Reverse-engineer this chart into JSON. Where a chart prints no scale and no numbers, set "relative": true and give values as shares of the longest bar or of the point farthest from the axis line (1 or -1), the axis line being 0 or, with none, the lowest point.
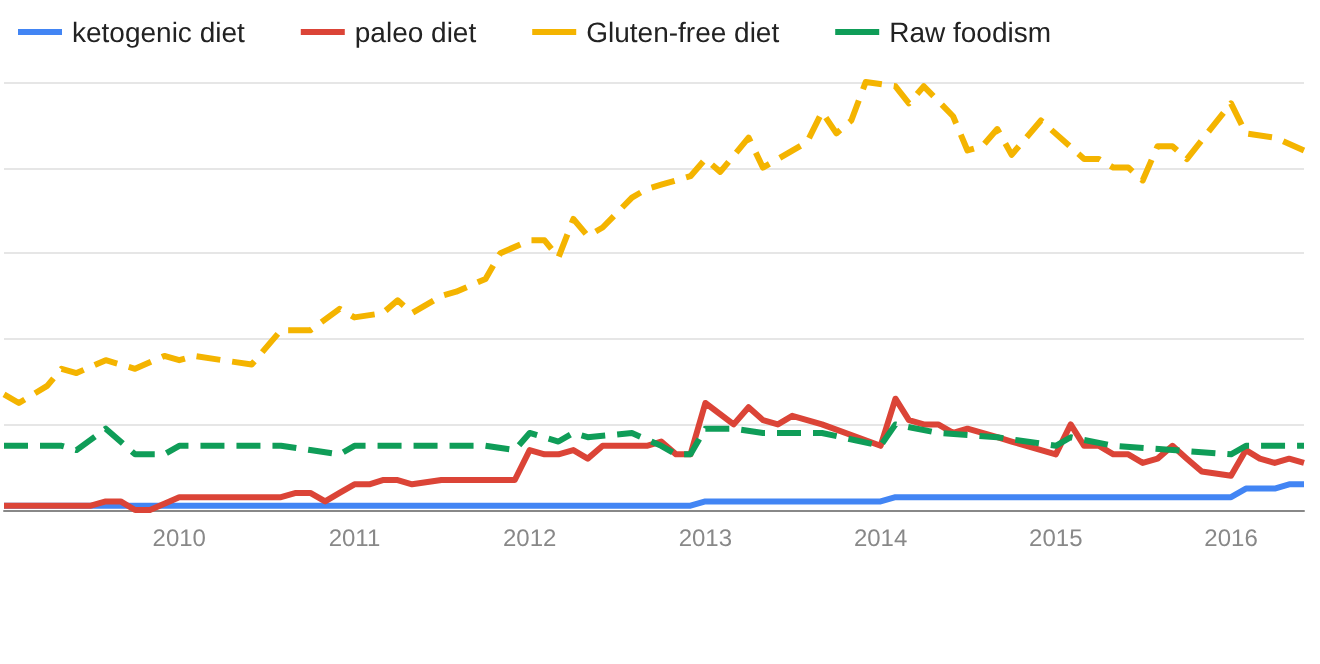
{
  "chart_data": {
    "type": "line",
    "relative": true,
    "grid": "y",
    "legend": "top left",
    "marker": "none",
    "xlim": [
      "2009-01",
      "2016-06"
    ],
    "xticks": [
      "2010",
      "2011",
      "2012",
      "2013",
      "2014",
      "2015",
      "2016"
    ],
    "series": [
      {
        "name": "ketogenic diet",
        "color": "#4285f4",
        "line_style": "solid",
        "x": [
          "2009-01",
          "2012-12",
          "2013-01",
          "2014-01",
          "2014-02",
          "2016-01",
          "2016-02",
          "2016-04",
          "2016-05",
          "2016-06"
        ],
        "values": [
          0.01,
          0.01,
          0.02,
          0.02,
          0.03,
          0.03,
          0.05,
          0.05,
          0.06,
          0.06
        ]
      },
      {
        "name": "paleo diet",
        "color": "#db4437",
        "line_style": "solid",
        "x": [
          "2009-01",
          "2009-07",
          "2009-08",
          "2009-09",
          "2009-10",
          "2009-11",
          "2010-01",
          "2010-08",
          "2010-09",
          "2010-10",
          "2010-11",
          "2010-12",
          "2011-01",
          "2011-02",
          "2011-03",
          "2011-04",
          "2011-05",
          "2011-07",
          "2011-12",
          "2012-01",
          "2012-02",
          "2012-03",
          "2012-04",
          "2012-05",
          "2012-06",
          "2012-08",
          "2012-09",
          "2012-10",
          "2012-11",
          "2012-12",
          "2013-01",
          "2013-03",
          "2013-04",
          "2013-05",
          "2013-06",
          "2013-07",
          "2013-09",
          "2014-01",
          "2014-02",
          "2014-03",
          "2014-04",
          "2014-05",
          "2014-06",
          "2014-07",
          "2014-09",
          "2014-10",
          "2015-01",
          "2015-02",
          "2015-03",
          "2015-04",
          "2015-05",
          "2015-06",
          "2015-07",
          "2015-08",
          "2015-09",
          "2015-10",
          "2015-11",
          "2016-01",
          "2016-02",
          "2016-03",
          "2016-04",
          "2016-05",
          "2016-06"
        ],
        "values": [
          0.01,
          0.01,
          0.02,
          0.02,
          0.0,
          0.0,
          0.03,
          0.03,
          0.04,
          0.04,
          0.02,
          0.04,
          0.06,
          0.06,
          0.07,
          0.07,
          0.06,
          0.07,
          0.07,
          0.14,
          0.13,
          0.13,
          0.14,
          0.12,
          0.15,
          0.15,
          0.15,
          0.16,
          0.13,
          0.13,
          0.25,
          0.2,
          0.24,
          0.21,
          0.2,
          0.22,
          0.2,
          0.15,
          0.26,
          0.21,
          0.2,
          0.2,
          0.18,
          0.19,
          0.17,
          0.16,
          0.13,
          0.2,
          0.15,
          0.15,
          0.13,
          0.13,
          0.11,
          0.12,
          0.15,
          0.12,
          0.09,
          0.08,
          0.14,
          0.12,
          0.11,
          0.12,
          0.11
        ]
      },
      {
        "name": "Gluten-free diet",
        "color": "#f4b400",
        "line_style": "dashed",
        "x": [
          "2009-01",
          "2009-02",
          "2009-04",
          "2009-05",
          "2009-06",
          "2009-08",
          "2009-10",
          "2009-12",
          "2010-01",
          "2010-02",
          "2010-04",
          "2010-06",
          "2010-08",
          "2010-10",
          "2010-12",
          "2011-01",
          "2011-03",
          "2011-04",
          "2011-05",
          "2011-07",
          "2011-08",
          "2011-10",
          "2011-11",
          "2012-01",
          "2012-02",
          "2012-03",
          "2012-04",
          "2012-05",
          "2012-06",
          "2012-08",
          "2012-09",
          "2012-10",
          "2012-12",
          "2013-01",
          "2013-02",
          "2013-04",
          "2013-05",
          "2013-06",
          "2013-08",
          "2013-09",
          "2013-10",
          "2013-11",
          "2013-12",
          "2014-02",
          "2014-03",
          "2014-04",
          "2014-06",
          "2014-07",
          "2014-08",
          "2014-09",
          "2014-10",
          "2014-12",
          "2015-03",
          "2015-04",
          "2015-05",
          "2015-06",
          "2015-07",
          "2015-08",
          "2015-09",
          "2015-10",
          "2016-01",
          "2016-02",
          "2016-04",
          "2016-06"
        ],
        "values": [
          0.27,
          0.25,
          0.29,
          0.33,
          0.32,
          0.35,
          0.33,
          0.36,
          0.35,
          0.36,
          0.35,
          0.34,
          0.42,
          0.42,
          0.47,
          0.45,
          0.46,
          0.49,
          0.46,
          0.5,
          0.51,
          0.54,
          0.6,
          0.63,
          0.63,
          0.59,
          0.68,
          0.64,
          0.66,
          0.73,
          0.75,
          0.76,
          0.78,
          0.82,
          0.79,
          0.87,
          0.8,
          0.82,
          0.86,
          0.93,
          0.88,
          0.91,
          1.0,
          0.99,
          0.95,
          0.99,
          0.92,
          0.84,
          0.85,
          0.89,
          0.83,
          0.91,
          0.82,
          0.82,
          0.8,
          0.8,
          0.77,
          0.85,
          0.85,
          0.82,
          0.95,
          0.88,
          0.87,
          0.84
        ]
      },
      {
        "name": "Raw foodism",
        "color": "#0f9d58",
        "line_style": "dashed",
        "x": [
          "2009-01",
          "2009-04",
          "2009-05",
          "2009-06",
          "2009-08",
          "2009-10",
          "2009-12",
          "2010-01",
          "2010-02",
          "2010-05",
          "2010-07",
          "2010-08",
          "2010-10",
          "2010-12",
          "2011-01",
          "2011-03",
          "2011-04",
          "2011-08",
          "2011-10",
          "2011-12",
          "2012-01",
          "2012-03",
          "2012-04",
          "2012-05",
          "2012-08",
          "2012-10",
          "2012-11",
          "2012-12",
          "2013-01",
          "2013-03",
          "2013-05",
          "2013-09",
          "2014-01",
          "2014-02",
          "2014-05",
          "2014-09",
          "2015-01",
          "2015-02",
          "2015-05",
          "2015-09",
          "2016-01",
          "2016-02",
          "2016-06"
        ],
        "values": [
          0.15,
          0.15,
          0.15,
          0.14,
          0.19,
          0.13,
          0.13,
          0.15,
          0.15,
          0.15,
          0.15,
          0.15,
          0.14,
          0.13,
          0.15,
          0.15,
          0.15,
          0.15,
          0.15,
          0.14,
          0.18,
          0.16,
          0.18,
          0.17,
          0.18,
          0.15,
          0.13,
          0.13,
          0.19,
          0.19,
          0.18,
          0.18,
          0.15,
          0.2,
          0.18,
          0.17,
          0.15,
          0.17,
          0.15,
          0.14,
          0.13,
          0.15,
          0.15
        ]
      }
    ]
  }
}
